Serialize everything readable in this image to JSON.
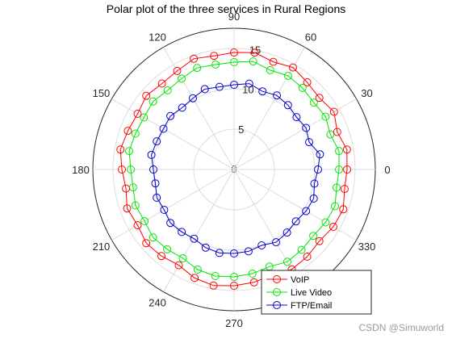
{
  "chart_data": {
    "type": "polar",
    "title": "Polar plot of the three services in Rural Regions",
    "theta_ticks": [
      {
        "deg": 0,
        "label": "0"
      },
      {
        "deg": 30,
        "label": "30"
      },
      {
        "deg": 60,
        "label": "60"
      },
      {
        "deg": 90,
        "label": "90"
      },
      {
        "deg": 120,
        "label": "120"
      },
      {
        "deg": 150,
        "label": "150"
      },
      {
        "deg": 180,
        "label": "180"
      },
      {
        "deg": 210,
        "label": "210"
      },
      {
        "deg": 240,
        "label": "240"
      },
      {
        "deg": 270,
        "label": "270"
      },
      {
        "deg": 300,
        "label": "300"
      },
      {
        "deg": 330,
        "label": "330"
      }
    ],
    "r_ticks": [
      {
        "value": 0,
        "label": "0"
      },
      {
        "value": 5,
        "label": "5"
      },
      {
        "value": 10,
        "label": "10"
      },
      {
        "value": 15,
        "label": "15"
      }
    ],
    "r_lim": [
      0,
      17.5
    ],
    "grid": true,
    "legend": {
      "position": "bottom-right"
    },
    "markers": "circle",
    "series": [
      {
        "name": "VoIP",
        "color": "#ff0000",
        "theta": [
          0,
          10,
          20,
          30,
          40,
          50,
          60,
          70,
          80,
          90,
          100,
          110,
          120,
          130,
          140,
          150,
          160,
          170,
          180,
          190,
          200,
          210,
          220,
          230,
          240,
          250,
          260,
          270,
          280,
          290,
          300,
          310,
          320,
          330,
          340,
          350
        ],
        "r": [
          14.0,
          14.2,
          13.6,
          14.3,
          13.8,
          14.1,
          14.6,
          14.2,
          14.7,
          14.5,
          14.3,
          14.6,
          14.1,
          13.9,
          14.2,
          13.8,
          14.0,
          14.3,
          13.9,
          13.6,
          14.1,
          13.8,
          14.2,
          14.0,
          13.7,
          14.3,
          14.6,
          14.4,
          14.2,
          13.9,
          14.3,
          14.1,
          13.8,
          14.2,
          14.4,
          13.9
        ]
      },
      {
        "name": "Live Video",
        "color": "#00e600",
        "theta": [
          0,
          10,
          20,
          30,
          40,
          50,
          60,
          70,
          80,
          90,
          100,
          110,
          120,
          130,
          140,
          150,
          160,
          170,
          180,
          190,
          200,
          210,
          220,
          230,
          240,
          250,
          260,
          270,
          280,
          290,
          300,
          310,
          320,
          330,
          340,
          350
        ],
        "r": [
          13.0,
          13.2,
          12.7,
          13.1,
          12.9,
          13.2,
          13.4,
          13.1,
          13.6,
          13.3,
          13.2,
          13.4,
          13.0,
          12.8,
          13.1,
          12.9,
          13.0,
          13.2,
          12.8,
          12.7,
          13.0,
          12.8,
          13.1,
          12.9,
          12.7,
          13.2,
          13.4,
          13.3,
          13.1,
          12.8,
          13.2,
          13.0,
          12.8,
          13.1,
          13.3,
          12.9
        ]
      },
      {
        "name": "FTP/Email",
        "color": "#0000cc",
        "theta": [
          0,
          10,
          20,
          30,
          40,
          50,
          60,
          70,
          80,
          90,
          100,
          110,
          120,
          130,
          140,
          150,
          160,
          170,
          180,
          190,
          200,
          210,
          220,
          230,
          240,
          250,
          260,
          270,
          280,
          290,
          300,
          310,
          320,
          330,
          340,
          350
        ],
        "r": [
          10.4,
          10.8,
          9.9,
          10.3,
          10.1,
          10.4,
          10.6,
          10.3,
          10.8,
          10.5,
          10.4,
          10.6,
          10.2,
          10.0,
          10.3,
          10.1,
          10.2,
          10.4,
          10.0,
          9.9,
          10.2,
          10.0,
          10.3,
          10.1,
          9.9,
          10.3,
          10.5,
          10.4,
          10.3,
          10.0,
          10.4,
          10.2,
          10.0,
          10.3,
          10.5,
          10.1
        ]
      }
    ]
  },
  "watermark": "CSDN @Simuworld"
}
